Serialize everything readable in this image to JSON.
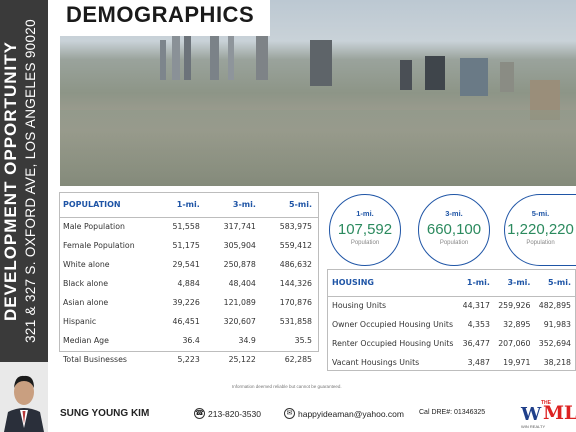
{
  "sidebar": {
    "line1": "DEVELOPMENT OPPORTUNITY",
    "line2": "321 & 327 S. OXFORD AVE, LOS ANGELES 90020"
  },
  "title": "DEMOGRAPHICS",
  "population": {
    "headers": [
      "POPULATION",
      "1-mi.",
      "3-mi.",
      "5-mi."
    ],
    "rows": [
      [
        "Male Population",
        "51,558",
        "317,741",
        "583,975"
      ],
      [
        "Female Population",
        "51,175",
        "305,904",
        "559,412"
      ],
      [
        "White alone",
        "29,541",
        "250,878",
        "486,632"
      ],
      [
        "Black alone",
        "4,884",
        "48,404",
        "144,326"
      ],
      [
        "Asian alone",
        "39,226",
        "121,089",
        "170,876"
      ],
      [
        "Hispanic",
        "46,451",
        "320,607",
        "531,858"
      ],
      [
        "Median Age",
        "36.4",
        "34.9",
        "35.5"
      ],
      [
        "Total Businesses",
        "5,223",
        "25,122",
        "62,285"
      ]
    ]
  },
  "circles": [
    {
      "label": "1-mi.",
      "value": "107,592",
      "sub": "Population"
    },
    {
      "label": "3-mi.",
      "value": "660,100",
      "sub": "Population"
    },
    {
      "label": "5-mi.",
      "value": "1,220,220",
      "sub": "Population"
    }
  ],
  "housing": {
    "headers": [
      "HOUSING",
      "1-mi.",
      "3-mi.",
      "5-mi."
    ],
    "rows": [
      [
        "Housing Units",
        "44,317",
        "259,926",
        "482,895"
      ],
      [
        "Owner Occupied Housing Units",
        "4,353",
        "32,895",
        "91,983"
      ],
      [
        "Renter Occupied Housing Units",
        "36,477",
        "207,060",
        "352,694"
      ],
      [
        "Vacant Housings Units",
        "3,487",
        "19,971",
        "38,218"
      ]
    ]
  },
  "disclaimer": "Information deemed reliable but cannot be guaranteed.",
  "footer": {
    "name": "SUNG YOUNG KIM",
    "phone": "213-820-3530",
    "email": "happyideaman@yahoo.com",
    "dre": "Cal DRE#: 01346325",
    "phone_icon": "phone-icon",
    "email_icon": "envelope-icon"
  },
  "logo": {
    "w": "W",
    "mls": "MLS",
    "the": "THE",
    "sub": "WIN REALTY"
  },
  "colors": {
    "accent": "#1f55a6",
    "value_green": "#2b8a5e",
    "sidebar": "#3a3a3a"
  }
}
